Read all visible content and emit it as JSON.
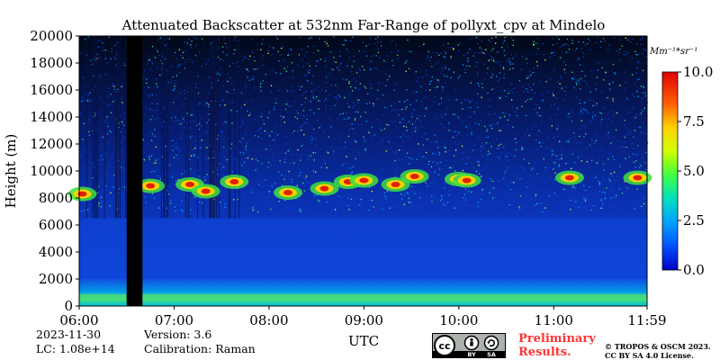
{
  "chart_data": {
    "type": "heatmap",
    "title": "Attenuated Backscatter at 532nm Far-Range of pollyxt_cpv at Mindelo",
    "xlabel": "UTC",
    "ylabel": "Height (m)",
    "x_ticks": [
      "06:00",
      "07:00",
      "08:00",
      "09:00",
      "10:00",
      "11:00",
      "11:59"
    ],
    "x_range": [
      "06:00",
      "11:59"
    ],
    "y_ticks": [
      0,
      2000,
      4000,
      6000,
      8000,
      10000,
      12000,
      14000,
      16000,
      18000,
      20000
    ],
    "y_range": [
      0,
      20000
    ],
    "colorbar": {
      "unit": "Mm⁻¹*sr⁻¹",
      "ticks": [
        "0.0",
        "2.5",
        "5.0",
        "7.5",
        "10.0"
      ],
      "range": [
        0,
        10
      ],
      "colors": [
        "#0000c8",
        "#0050ff",
        "#00a0ff",
        "#00e0c0",
        "#40ff40",
        "#d0ff00",
        "#ffd000",
        "#ff6000",
        "#e00000",
        "#ff2020"
      ]
    },
    "background_color": "#1040e0",
    "no_data_intervals": [
      [
        "06:30",
        "06:40"
      ]
    ],
    "cloud_layer": {
      "base_m": 7800,
      "top_m": 10500
    },
    "boundary_layer_top_m": 2000
  },
  "footer": {
    "date": "2023-11-30",
    "lc": "LC: 1.08e+14",
    "version": "Version: 3.6",
    "calibration": "Calibration: Raman",
    "preliminary": "Preliminary Results.",
    "copyright_line1": "© TROPOS & OSCM 2023.",
    "copyright_line2": "CC BY SA 4.0 License."
  },
  "license_badge": {
    "cc": "cc",
    "by": "BY",
    "sa": "SA"
  }
}
